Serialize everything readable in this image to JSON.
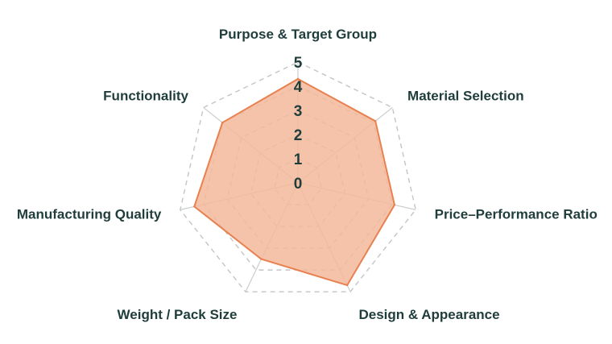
{
  "chart_data": {
    "type": "radar",
    "title": "",
    "axes": [
      "Purpose & Target Group",
      "Material Selection",
      "Price–Performance Ratio",
      "Design & Appearance",
      "Weight / Pack Size",
      "Manufacturing Quality",
      "Functionality"
    ],
    "range": [
      0,
      5
    ],
    "ticks": [
      "0",
      "1",
      "2",
      "3",
      "4",
      "5"
    ],
    "grid": true,
    "series": [
      {
        "values": [
          4.3,
          4.1,
          4.1,
          4.7,
          3.5,
          4.4,
          4.0
        ],
        "color": "#e8804f",
        "fill": "#f3b89b"
      }
    ]
  }
}
